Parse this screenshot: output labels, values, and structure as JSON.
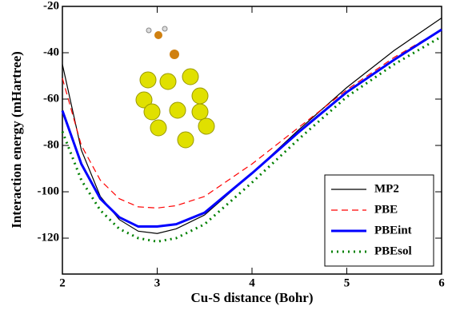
{
  "chart_data": {
    "type": "line",
    "x_label": "Cu-S distance (Bohr)",
    "y_label": "Interaction energy (mHartree)",
    "x": [
      2,
      2.2,
      2.4,
      2.6,
      2.8,
      3.0,
      3.2,
      3.5,
      4,
      4.5,
      5,
      5.5,
      6
    ],
    "series": [
      {
        "name": "MP2",
        "color": "#000000",
        "line_style": "solid",
        "line_width": 1.2,
        "values": [
          -45,
          -82,
          -102,
          -112,
          -117,
          -118,
          -116,
          -110,
          -92,
          -73,
          -55,
          -39,
          -25
        ]
      },
      {
        "name": "PBE",
        "color": "#ff0000",
        "line_style": "dashed",
        "line_width": 1.2,
        "values": [
          -51,
          -80,
          -95,
          -103,
          -106.5,
          -107,
          -106,
          -102,
          -88,
          -72,
          -56,
          -42,
          -30
        ]
      },
      {
        "name": "PBEint",
        "color": "#0000ff",
        "line_style": "solid",
        "line_width": 3,
        "values": [
          -65,
          -88,
          -103,
          -111,
          -115,
          -115,
          -114,
          -109,
          -92,
          -74,
          -57,
          -43,
          -30
        ]
      },
      {
        "name": "PBEsol",
        "color": "#008000",
        "line_style": "dotted",
        "line_width": 3,
        "values": [
          -74,
          -95,
          -108,
          -116,
          -120,
          -121.5,
          -120,
          -114,
          -96,
          -77,
          -59,
          -45,
          -33
        ]
      }
    ],
    "xlim": [
      2,
      6
    ],
    "xticks": [
      2,
      3,
      4,
      5,
      6
    ],
    "ylim": [
      -135.5,
      -20
    ],
    "yticks": [
      -120,
      -100,
      -80,
      -60,
      -40,
      -20
    ],
    "legend": "lower right"
  }
}
